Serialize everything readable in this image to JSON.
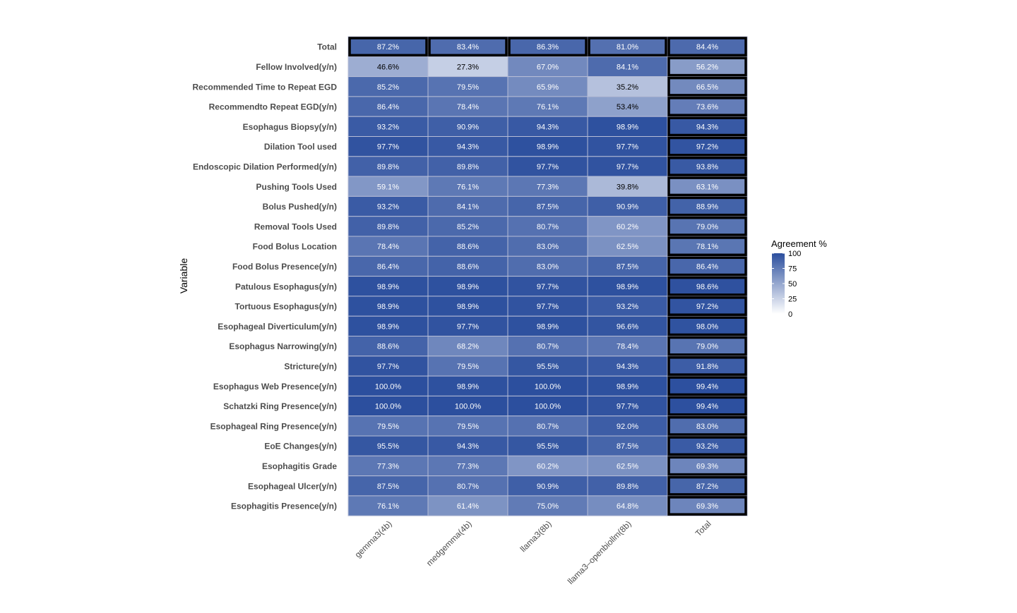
{
  "chart_data": {
    "type": "heatmap",
    "ylabel": "Variable",
    "xlabel": "",
    "columns": [
      "gemma3(4b)",
      "medgemma(4b)",
      "llama3(8b)",
      "llama3–openbiollm(8b)",
      "Total"
    ],
    "rows": [
      "Total",
      "Fellow Involved(y/n)",
      "Recommended Time to Repeat EGD",
      "Recommendto Repeat EGD(y/n)",
      "Esophagus Biopsy(y/n)",
      "Dilation Tool used",
      "Endoscopic Dilation Performed(y/n)",
      "Pushing Tools Used",
      "Bolus Pushed(y/n)",
      "Removal Tools Used",
      "Food Bolus Location",
      "Food Bolus Presence(y/n)",
      "Patulous Esophagus(y/n)",
      "Tortuous Esophagus(y/n)",
      "Esophageal Diverticulum(y/n)",
      "Esophagus Narrowing(y/n)",
      "Stricture(y/n)",
      "Esophagus Web Presence(y/n)",
      "Schatzki Ring Presence(y/n)",
      "Esophageal Ring Presence(y/n)",
      "EoE Changes(y/n)",
      "Esophagitis Grade",
      "Esophageal Ulcer(y/n)",
      "Esophagitis Presence(y/n)"
    ],
    "values": [
      [
        87.2,
        83.4,
        86.3,
        81.0,
        84.4
      ],
      [
        46.6,
        27.3,
        67.0,
        84.1,
        56.2
      ],
      [
        85.2,
        79.5,
        65.9,
        35.2,
        66.5
      ],
      [
        86.4,
        78.4,
        76.1,
        53.4,
        73.6
      ],
      [
        93.2,
        90.9,
        94.3,
        98.9,
        94.3
      ],
      [
        97.7,
        94.3,
        98.9,
        97.7,
        97.2
      ],
      [
        89.8,
        89.8,
        97.7,
        97.7,
        93.8
      ],
      [
        59.1,
        76.1,
        77.3,
        39.8,
        63.1
      ],
      [
        93.2,
        84.1,
        87.5,
        90.9,
        88.9
      ],
      [
        89.8,
        85.2,
        80.7,
        60.2,
        79.0
      ],
      [
        78.4,
        88.6,
        83.0,
        62.5,
        78.1
      ],
      [
        86.4,
        88.6,
        83.0,
        87.5,
        86.4
      ],
      [
        98.9,
        98.9,
        97.7,
        98.9,
        98.6
      ],
      [
        98.9,
        98.9,
        97.7,
        93.2,
        97.2
      ],
      [
        98.9,
        97.7,
        98.9,
        96.6,
        98.0
      ],
      [
        88.6,
        68.2,
        80.7,
        78.4,
        79.0
      ],
      [
        97.7,
        79.5,
        95.5,
        94.3,
        91.8
      ],
      [
        100.0,
        98.9,
        100.0,
        98.9,
        99.4
      ],
      [
        100.0,
        100.0,
        100.0,
        97.7,
        99.4
      ],
      [
        79.5,
        79.5,
        80.7,
        92.0,
        83.0
      ],
      [
        95.5,
        94.3,
        95.5,
        87.5,
        93.2
      ],
      [
        77.3,
        77.3,
        60.2,
        62.5,
        69.3
      ],
      [
        87.5,
        80.7,
        90.9,
        89.8,
        87.2
      ],
      [
        76.1,
        61.4,
        75.0,
        64.8,
        69.3
      ]
    ],
    "value_suffix": "%",
    "legend": {
      "title": "Agreement %",
      "ticks": [
        100,
        75,
        50,
        25,
        0
      ],
      "range": [
        0,
        100
      ],
      "placement": "right"
    },
    "colors": {
      "low": "#ffffff",
      "high": "#2c4f9e",
      "highlight_border": "#000000",
      "cell_border": "#b7bdd6",
      "row_label": "#4d4d4d"
    },
    "highlighted": [
      "first-row",
      "last-column"
    ]
  }
}
